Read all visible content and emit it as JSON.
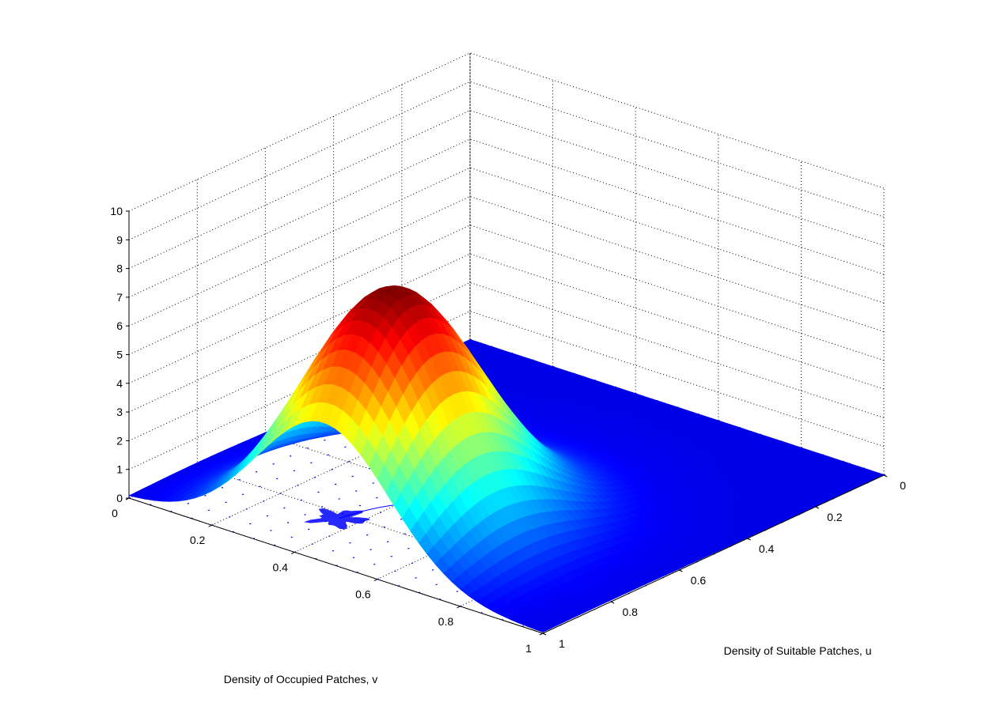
{
  "chart_data": {
    "type": "surface",
    "title": "",
    "xlabel": "Density of Occupied Patches, v",
    "ylabel": "Density of Suitable Patches, u",
    "zlabel": "",
    "x_axis": {
      "variable": "v",
      "lim": [
        0,
        1
      ],
      "ticks": [
        0,
        0.2,
        0.4,
        0.6,
        0.8,
        1
      ],
      "tick_labels": [
        "0",
        "0.2",
        "0.4",
        "0.6",
        "0.8",
        "1"
      ]
    },
    "y_axis": {
      "variable": "u",
      "lim": [
        0,
        1
      ],
      "ticks": [
        0,
        0.2,
        0.4,
        0.6,
        0.8,
        1
      ],
      "tick_labels": [
        "0",
        "0.2",
        "0.4",
        "0.6",
        "0.8",
        "1"
      ]
    },
    "z_axis": {
      "lim": [
        0,
        10
      ],
      "ticks": [
        0,
        1,
        2,
        3,
        4,
        5,
        6,
        7,
        8,
        9,
        10
      ],
      "tick_labels": [
        "0",
        "1",
        "2",
        "3",
        "4",
        "5",
        "6",
        "7",
        "8",
        "9",
        "10"
      ]
    },
    "grid": true,
    "colormap": "jet",
    "surface_peak": {
      "v": 0.47,
      "u": 0.8,
      "z": 8.4
    },
    "surface_shape": {
      "sigma_v": 0.16,
      "sigma_u": 0.19
    },
    "sample_slices": [
      {
        "u": 0.0,
        "v": [
          0,
          0.2,
          0.4,
          0.47,
          0.6,
          0.8,
          1
        ],
        "z": [
          0.0,
          0.0,
          0.0,
          0.0,
          0.0,
          0.0,
          0.0
        ]
      },
      {
        "u": 0.4,
        "v": [
          0,
          0.2,
          0.4,
          0.47,
          0.6,
          0.8,
          1
        ],
        "z": [
          0.0,
          0.1,
          0.2,
          0.2,
          0.2,
          0.0,
          0.0
        ]
      },
      {
        "u": 0.6,
        "v": [
          0,
          0.2,
          0.4,
          0.47,
          0.6,
          0.8,
          1
        ],
        "z": [
          0.1,
          1.1,
          2.6,
          2.8,
          2.0,
          0.3,
          0.0
        ]
      },
      {
        "u": 0.8,
        "v": [
          0,
          0.2,
          0.4,
          0.47,
          0.6,
          0.8,
          1
        ],
        "z": [
          0.2,
          2.0,
          7.6,
          8.4,
          5.9,
          1.1,
          0.0
        ]
      },
      {
        "u": 1.0,
        "v": [
          0,
          0.2,
          0.4,
          0.47,
          0.6,
          0.8,
          1
        ],
        "z": [
          0.1,
          1.1,
          4.2,
          4.6,
          3.3,
          0.6,
          0.0
        ]
      }
    ],
    "floor_overlay": "blue quiver field and trajectory on the z = 0 plane",
    "colors": {
      "surface_low": "#00008f",
      "surface_high": "#800000",
      "overlay": "#0000ff"
    }
  }
}
